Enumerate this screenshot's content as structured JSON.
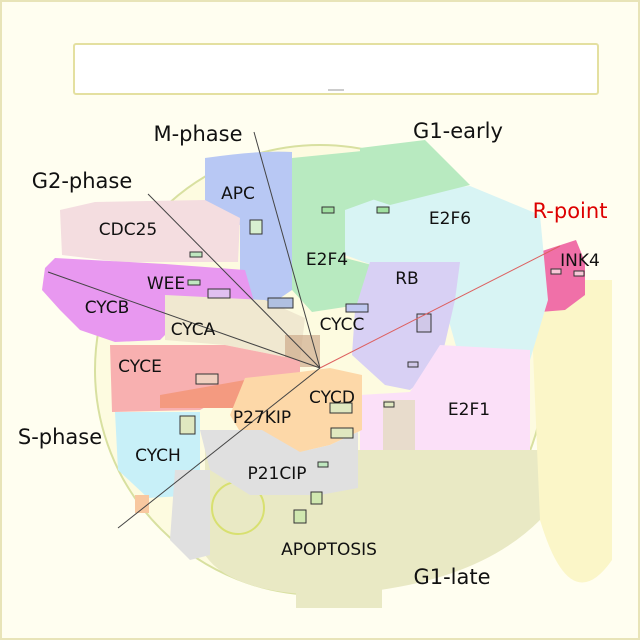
{
  "phases": {
    "m_phase": "M-phase",
    "g1_early": "G1-early",
    "g2_phase": "G2-phase",
    "r_point": "R-point",
    "s_phase": "S-phase",
    "g1_late": "G1-late"
  },
  "regions": {
    "apc": "APC",
    "cdc25": "CDC25",
    "e2f4": "E2F4",
    "e2f6": "E2F6",
    "ink4": "INK4",
    "rb": "RB",
    "wee": "WEE",
    "cycb": "CYCB",
    "cyca": "CYCA",
    "cycc": "CYCC",
    "cyce": "CYCE",
    "cycd": "CYCD",
    "e2f1": "E2F1",
    "p27kip": "P27KIP",
    "cych": "CYCH",
    "p21cip": "P21CIP",
    "apoptosis": "APOPTOSIS"
  },
  "colors": {
    "background": "#fffef0",
    "circle": "#e8ecc0",
    "apc": "#b8c8f4",
    "cdc25": "#f4dde0",
    "e2f4": "#b8eac0",
    "e2f6": "#d8f4f4",
    "ink4": "#f070a8",
    "rb": "#d8d0f4",
    "wee_cycb": "#e898f0",
    "cyca": "#f0e8d0",
    "cyce": "#f8b0b0",
    "cycd": "#fdd8a8",
    "e2f1": "#fbe0f8",
    "cych": "#c8f0f8",
    "p21cip": "#e0e0e0",
    "apoptosis": "#e8e8c0",
    "yellow": "#fbf6c8",
    "r_point": "#dd0000"
  }
}
